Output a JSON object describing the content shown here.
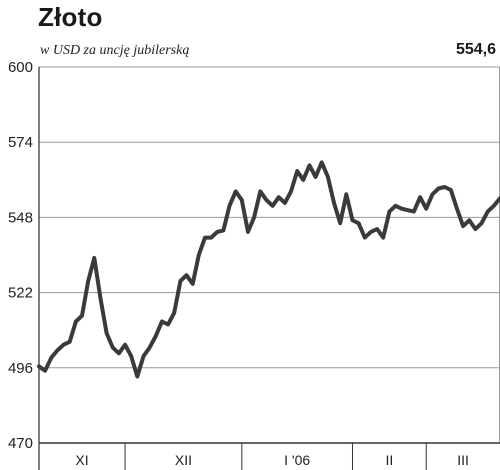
{
  "header": {
    "title": "Złoto",
    "subtitle": "w USD za uncję jubilerską",
    "last_value": "554,6"
  },
  "chart_data": {
    "type": "line",
    "title": "Złoto",
    "subtitle": "w USD za uncję jubilerską",
    "ylim": [
      470,
      600
    ],
    "yticks": [
      600,
      574,
      548,
      522,
      496,
      470
    ],
    "grid": true,
    "months": [
      "XI",
      "XII",
      "I '06",
      "II",
      "III"
    ],
    "month_spans": [
      [
        0,
        14
      ],
      [
        14,
        33
      ],
      [
        33,
        51
      ],
      [
        51,
        63
      ],
      [
        63,
        75
      ]
    ],
    "x": [
      0,
      1,
      2,
      3,
      4,
      5,
      6,
      7,
      8,
      9,
      10,
      11,
      12,
      13,
      14,
      15,
      16,
      17,
      18,
      19,
      20,
      21,
      22,
      23,
      24,
      25,
      26,
      27,
      28,
      29,
      30,
      31,
      32,
      33,
      34,
      35,
      36,
      37,
      38,
      39,
      40,
      41,
      42,
      43,
      44,
      45,
      46,
      47,
      48,
      49,
      50,
      51,
      52,
      53,
      54,
      55,
      56,
      57,
      58,
      59,
      60,
      61,
      62,
      63,
      64,
      65,
      66,
      67,
      68,
      69,
      70,
      71,
      72,
      73,
      74,
      75
    ],
    "series": [
      {
        "values": [
          496.5,
          495,
          499.5,
          502,
          504,
          505,
          512,
          514,
          526,
          534,
          520,
          508,
          503,
          501,
          504,
          500,
          493,
          500,
          503,
          507,
          512,
          511,
          515,
          526,
          528,
          525,
          535,
          541,
          541,
          543,
          543.5,
          552,
          557,
          554,
          543,
          548,
          557,
          554,
          552,
          555,
          553,
          557,
          564,
          561,
          566,
          562,
          567,
          562,
          553,
          546,
          556,
          547,
          546,
          541,
          543,
          544,
          541,
          550,
          552,
          551,
          550.5,
          550,
          555,
          551,
          556,
          558,
          558.5,
          557.5,
          551,
          545,
          547,
          544,
          546,
          550,
          552,
          554.6
        ]
      }
    ]
  }
}
